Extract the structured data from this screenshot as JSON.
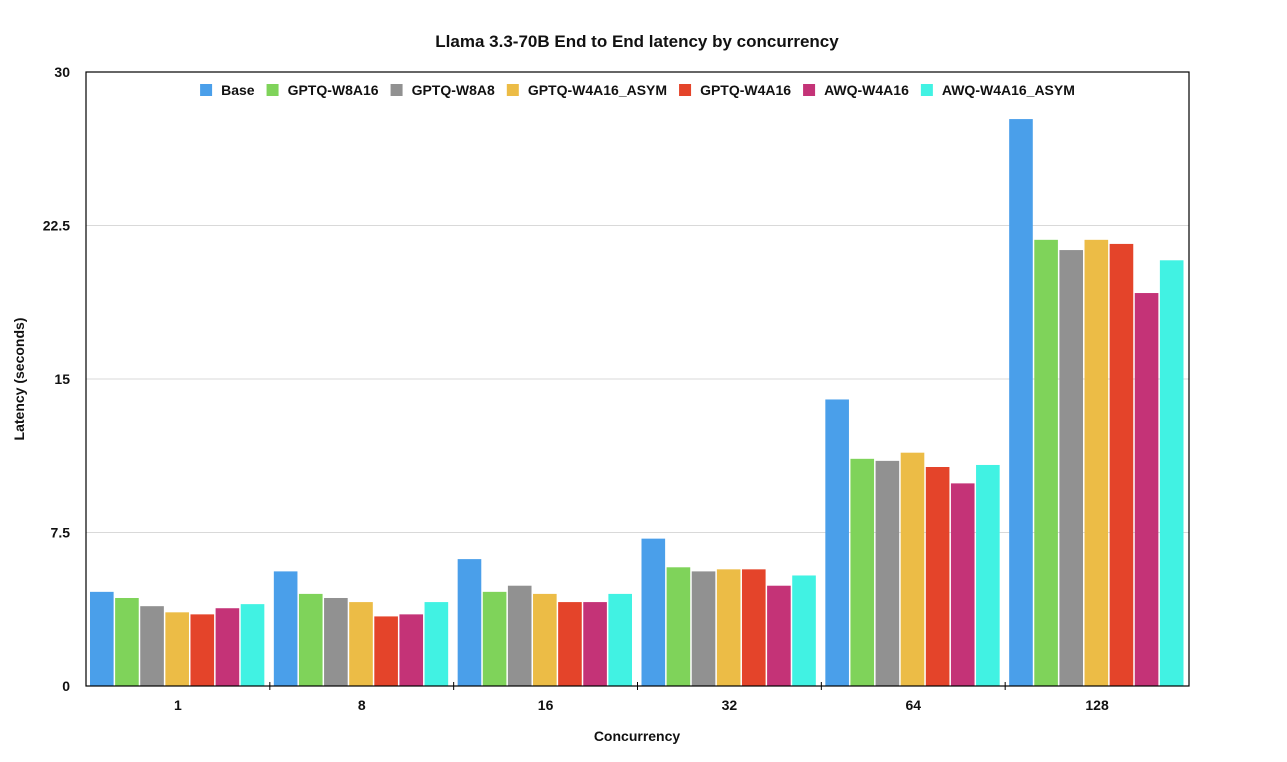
{
  "chart_data": {
    "type": "bar",
    "title": "Llama 3.3-70B End to End latency by concurrency",
    "xlabel": "Concurrency",
    "ylabel": "Latency (seconds)",
    "ylim": [
      0,
      30
    ],
    "yticks": [
      "0",
      "7.5",
      "15",
      "22.5",
      "30"
    ],
    "grid": true,
    "legend_position": "top",
    "categories": [
      "1",
      "8",
      "16",
      "32",
      "64",
      "128"
    ],
    "series": [
      {
        "name": "Base",
        "color": "#4a9fea",
        "values": [
          4.6,
          5.6,
          6.2,
          7.2,
          14.0,
          27.7
        ]
      },
      {
        "name": "GPTQ-W8A16",
        "color": "#7fd35a",
        "values": [
          4.3,
          4.5,
          4.6,
          5.8,
          11.1,
          21.8
        ]
      },
      {
        "name": "GPTQ-W8A8",
        "color": "#919191",
        "values": [
          3.9,
          4.3,
          4.9,
          5.6,
          11.0,
          21.3
        ]
      },
      {
        "name": "GPTQ-W4A16_ASYM",
        "color": "#ecbc46",
        "values": [
          3.6,
          4.1,
          4.5,
          5.7,
          11.4,
          21.8
        ]
      },
      {
        "name": "GPTQ-W4A16",
        "color": "#e4442a",
        "values": [
          3.5,
          3.4,
          4.1,
          5.7,
          10.7,
          21.6
        ]
      },
      {
        "name": "AWQ-W4A16",
        "color": "#c43377",
        "values": [
          3.8,
          3.5,
          4.1,
          4.9,
          9.9,
          19.2
        ]
      },
      {
        "name": "AWQ-W4A16_ASYM",
        "color": "#41f2e3",
        "values": [
          4.0,
          4.1,
          4.5,
          5.4,
          10.8,
          20.8
        ]
      }
    ]
  }
}
